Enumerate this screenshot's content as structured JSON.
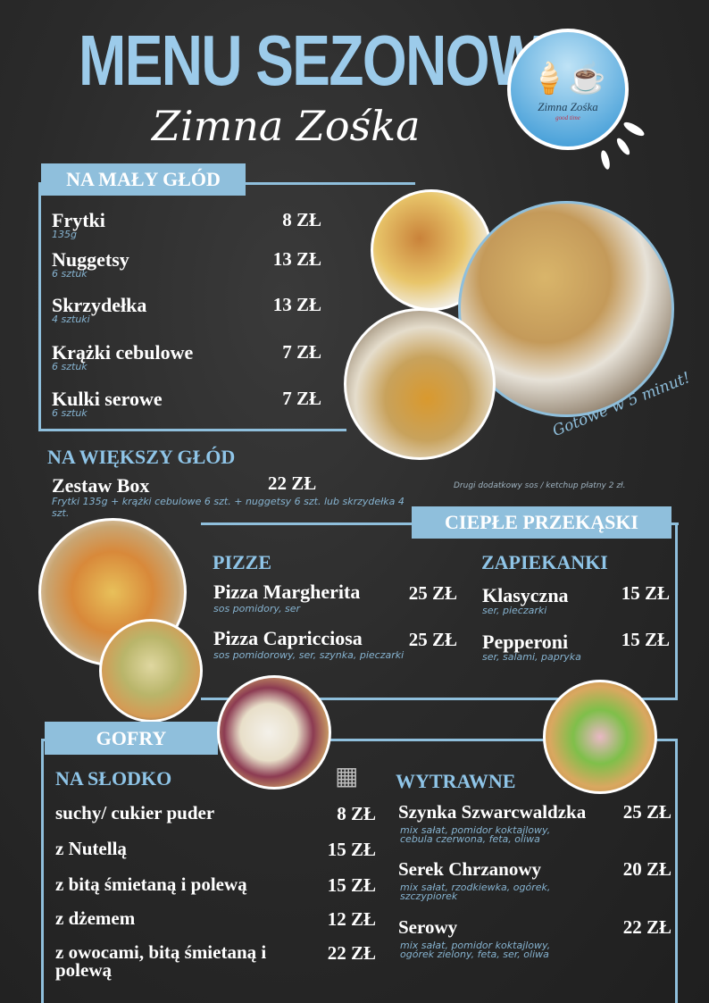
{
  "header": {
    "title": "MENU SEZONOWE",
    "subtitle": "Zimna Zośka",
    "logo_text": "Zimna Zośka",
    "logo_tagline": "good time"
  },
  "colors": {
    "accent": "#8fbfdc",
    "heading": "#9ccbea",
    "background": "#2a2a2a"
  },
  "maly_glod": {
    "label": "NA MAŁY GŁÓD",
    "items": [
      {
        "name": "Frytki",
        "desc": "135g",
        "price": "8 ZŁ"
      },
      {
        "name": "Nuggetsy",
        "desc": "6 sztuk",
        "price": "13 ZŁ"
      },
      {
        "name": "Skrzydełka",
        "desc": "4 sztuki",
        "price": "13 ZŁ"
      },
      {
        "name": "Krążki cebulowe",
        "desc": "6 sztuk",
        "price": "7 ZŁ"
      },
      {
        "name": "Kulki serowe",
        "desc": "6 sztuk",
        "price": "7 ZŁ"
      }
    ],
    "note": "Gotowe w 5 minut!"
  },
  "wiekszy_glod": {
    "label": "NA WIĘKSZY GŁÓD",
    "item": {
      "name": "Zestaw Box",
      "price": "22 ZŁ",
      "desc": "Frytki 135g + krążki cebulowe 6 szt. + nuggetsy 6 szt. lub skrzydełka 4 szt."
    },
    "note": "Drugi dodatkowy sos / ketchup płatny 2 zł."
  },
  "cieple": {
    "label": "CIEPŁE PRZEKĄSKI",
    "pizze": {
      "label": "PIZZE",
      "items": [
        {
          "name": "Pizza Margherita",
          "desc": "sos pomidory, ser",
          "price": "25 ZŁ"
        },
        {
          "name": "Pizza Capricciosa",
          "desc": "sos pomidorowy, ser, szynka, pieczarki",
          "price": "25 ZŁ"
        }
      ]
    },
    "zapiekanki": {
      "label": "ZAPIEKANKI",
      "items": [
        {
          "name": "Klasyczna",
          "desc": "ser, pieczarki",
          "price": "15 ZŁ"
        },
        {
          "name": "Pepperoni",
          "desc": "ser, salami, papryka",
          "price": "15 ZŁ"
        }
      ]
    }
  },
  "gofry": {
    "label": "GOFRY",
    "slodko": {
      "label": "NA SŁODKO",
      "items": [
        {
          "name": "suchy/ cukier puder",
          "price": "8 ZŁ"
        },
        {
          "name": "z Nutellą",
          "price": "15 ZŁ"
        },
        {
          "name": "z bitą śmietaną i polewą",
          "price": "15 ZŁ"
        },
        {
          "name": "z dżemem",
          "price": "12 ZŁ"
        },
        {
          "name": "z owocami, bitą śmietaną i polewą",
          "price": "22 ZŁ"
        }
      ]
    },
    "wytrawne": {
      "label": "WYTRAWNE",
      "items": [
        {
          "name": "Szynka Szwarcwaldzka",
          "desc": "mix sałat, pomidor koktajlowy, cebula czerwona, feta, oliwa",
          "price": "25 ZŁ"
        },
        {
          "name": "Serek Chrzanowy",
          "desc": "mix sałat, rzodkiewka, ogórek, szczypiorek",
          "price": "20 ZŁ"
        },
        {
          "name": "Serowy",
          "desc": "mix sałat, pomidor koktajlowy, ogórek zielony, feta, ser, oliwa",
          "price": "22 ZŁ"
        }
      ]
    }
  }
}
